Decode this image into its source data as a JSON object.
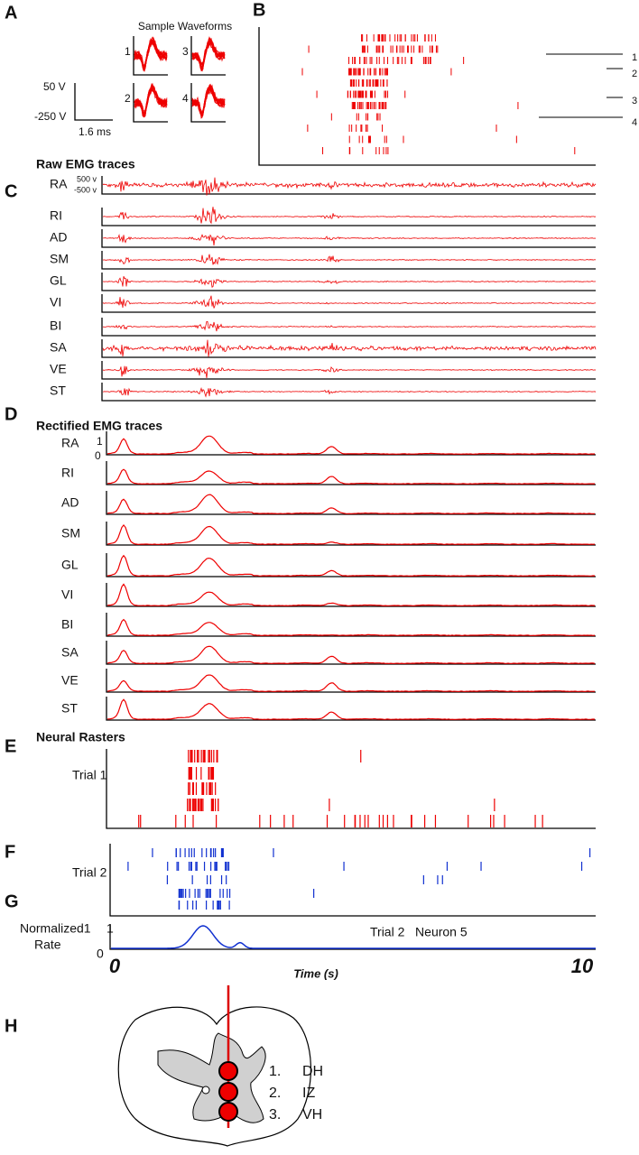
{
  "panels": {
    "A": {
      "label": "A",
      "title": "Sample Waveforms",
      "units": [
        "1",
        "3",
        "2",
        "4"
      ],
      "scale_top": "50  V",
      "scale_bottom": "-250  V",
      "scale_time": "1.6 ms"
    },
    "B": {
      "label": "B",
      "neurons": [
        "1",
        "2",
        "3",
        "4"
      ]
    },
    "C": {
      "label": "C",
      "title": "Raw EMG traces",
      "scale_top": "500 v",
      "scale_bottom": "-500 v",
      "muscles": [
        "RA",
        "RI",
        "AD",
        "SM",
        "GL",
        "VI",
        "BI",
        "SA",
        "VE",
        "ST"
      ]
    },
    "D": {
      "label": "D",
      "title": "Rectified EMG traces",
      "scale_top": "1",
      "scale_bottom": "0",
      "muscles": [
        "RA",
        "RI",
        "AD",
        "SM",
        "GL",
        "VI",
        "BI",
        "SA",
        "VE",
        "ST"
      ]
    },
    "E": {
      "label": "E",
      "title": "Neural Rasters",
      "trial": "Trial 1"
    },
    "F": {
      "label": "F",
      "trial": "Trial 2"
    },
    "G": {
      "label": "G",
      "ylabel_top": "Normalized1",
      "ylabel_bottom": "Rate",
      "ytick_top": "1",
      "ytick_bottom": "0",
      "annotation": "Trial 2   Neuron 5"
    },
    "time_axis": {
      "start": "0",
      "end": "10",
      "label": "Time (s)"
    },
    "H": {
      "label": "H",
      "sites": [
        "1.",
        "2.",
        "3."
      ],
      "regions": [
        "DH",
        "IZ",
        "VH"
      ]
    }
  }
}
